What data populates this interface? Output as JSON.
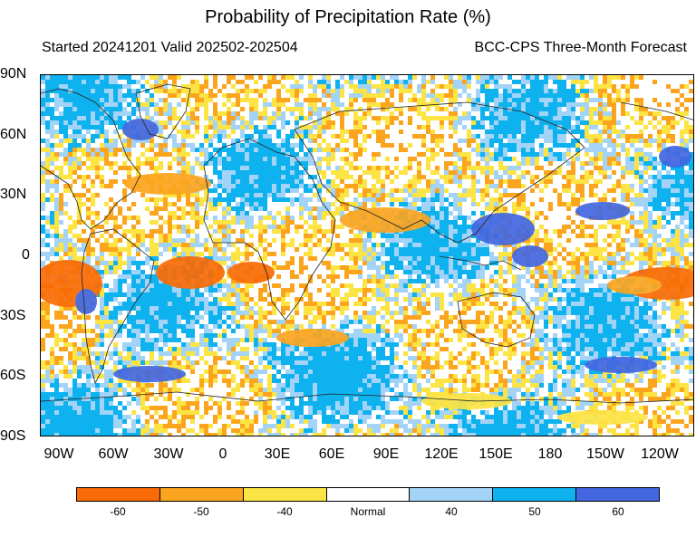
{
  "title": "Probability of Precipitation Rate (%)",
  "subtitle_left": "Started 20241201  Valid 202502-202504",
  "subtitle_right": "BCC-CPS Three-Month Forecast",
  "lat_labels": [
    "90N",
    "60N",
    "30N",
    "0",
    "30S",
    "60S",
    "90S"
  ],
  "lon_labels": [
    "90W",
    "60W",
    "30W",
    "0",
    "30E",
    "60E",
    "90E",
    "120E",
    "150E",
    "180",
    "150W",
    "120W"
  ],
  "legend": {
    "categories": [
      "-60",
      "-50",
      "-40",
      "Normal",
      "40",
      "50",
      "60"
    ],
    "colors": [
      "#f96b06",
      "#fba51f",
      "#fde445",
      "#ffffff",
      "#a3d4f7",
      "#0eb2ee",
      "#4367e0"
    ]
  }
}
